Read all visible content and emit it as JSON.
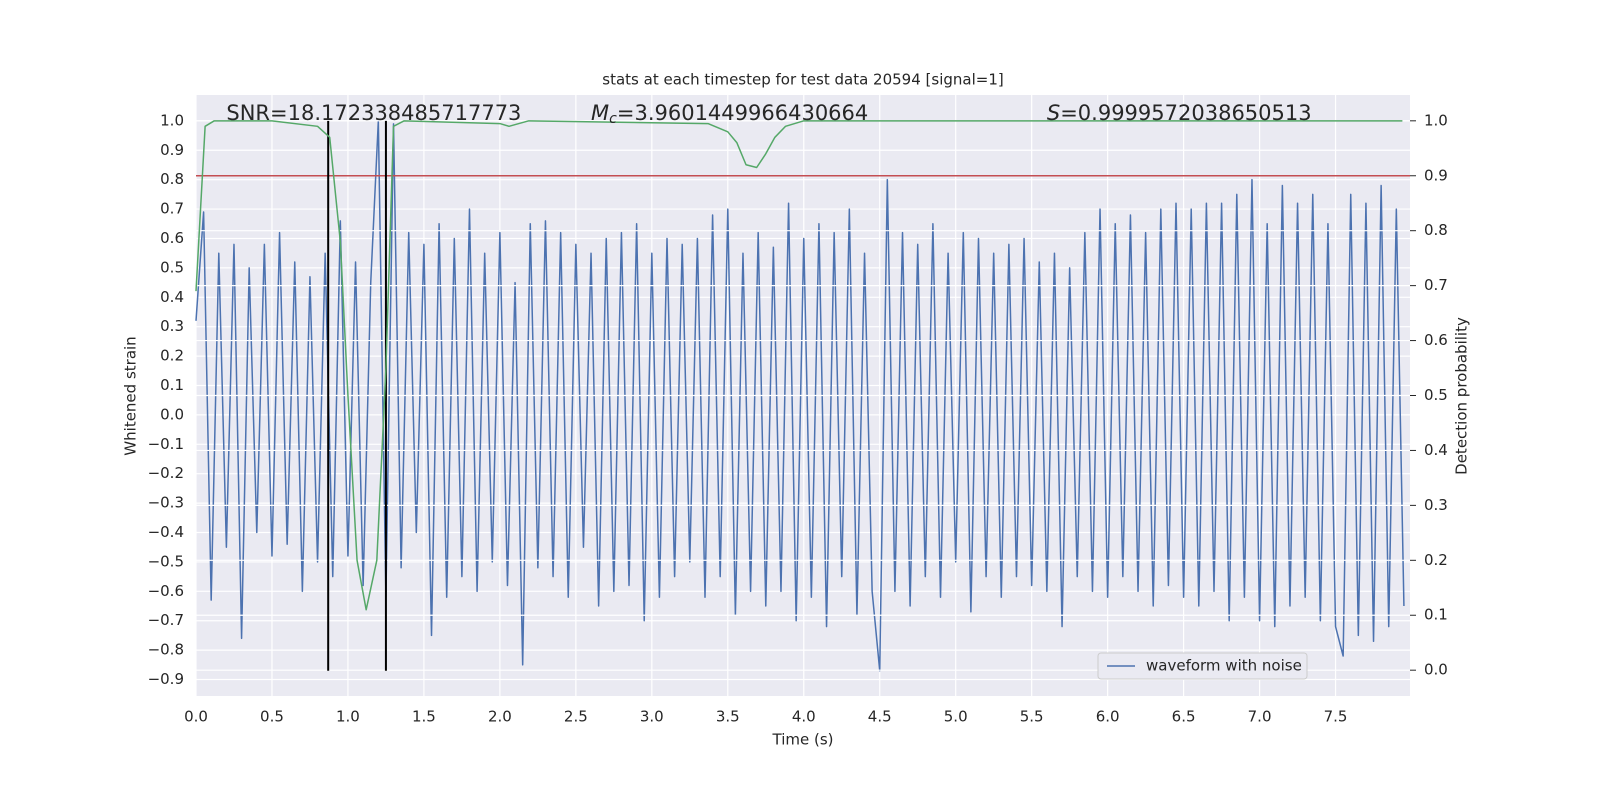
{
  "chart_data": {
    "type": "line",
    "title": "stats at each timestep for test data 20594 [signal=1]",
    "xlabel": "Time (s)",
    "ylabel": "Whitened strain",
    "y2label": "Detection probability",
    "annotations": [
      {
        "text": "SNR=18.172338485717773",
        "x": 0.2
      },
      {
        "symbol": "M",
        "subscript": "c",
        "text": "=3.9601449966430664",
        "x": 2.6
      },
      {
        "symbol": "S",
        "text": "=0.9999572038650513",
        "x": 5.6
      }
    ],
    "xlim": [
      0,
      7.99
    ],
    "ylim": [
      -0.956,
      1.088
    ],
    "y2lim": [
      -0.047,
      1.047
    ],
    "grid": true,
    "legend": "lower right",
    "xticks": [
      {
        "value": 0,
        "label": "0.0"
      },
      {
        "value": 0.5,
        "label": "0.5"
      },
      {
        "value": 1,
        "label": "1.0"
      },
      {
        "value": 1.5,
        "label": "1.5"
      },
      {
        "value": 2,
        "label": "2.0"
      },
      {
        "value": 2.5,
        "label": "2.5"
      },
      {
        "value": 3,
        "label": "3.0"
      },
      {
        "value": 3.5,
        "label": "3.5"
      },
      {
        "value": 4,
        "label": "4.0"
      },
      {
        "value": 4.5,
        "label": "4.5"
      },
      {
        "value": 5,
        "label": "5.0"
      },
      {
        "value": 5.5,
        "label": "5.5"
      },
      {
        "value": 6,
        "label": "6.0"
      },
      {
        "value": 6.5,
        "label": "6.5"
      },
      {
        "value": 7,
        "label": "7.0"
      },
      {
        "value": 7.5,
        "label": "7.5"
      }
    ],
    "yticks": [
      {
        "value": -0.9,
        "label": "−0.9"
      },
      {
        "value": -0.8,
        "label": "−0.8"
      },
      {
        "value": -0.7,
        "label": "−0.7"
      },
      {
        "value": -0.6,
        "label": "−0.6"
      },
      {
        "value": -0.5,
        "label": "−0.5"
      },
      {
        "value": -0.4,
        "label": "−0.4"
      },
      {
        "value": -0.3,
        "label": "−0.3"
      },
      {
        "value": -0.2,
        "label": "−0.2"
      },
      {
        "value": -0.1,
        "label": "−0.1"
      },
      {
        "value": 0,
        "label": "0.0"
      },
      {
        "value": 0.1,
        "label": "0.1"
      },
      {
        "value": 0.2,
        "label": "0.2"
      },
      {
        "value": 0.3,
        "label": "0.3"
      },
      {
        "value": 0.4,
        "label": "0.4"
      },
      {
        "value": 0.5,
        "label": "0.5"
      },
      {
        "value": 0.6,
        "label": "0.6"
      },
      {
        "value": 0.7,
        "label": "0.7"
      },
      {
        "value": 0.8,
        "label": "0.8"
      },
      {
        "value": 0.9,
        "label": "0.9"
      },
      {
        "value": 1,
        "label": "1.0"
      }
    ],
    "y2ticks": [
      {
        "value": 0,
        "label": "0.0"
      },
      {
        "value": 0.1,
        "label": "0.1"
      },
      {
        "value": 0.2,
        "label": "0.2"
      },
      {
        "value": 0.3,
        "label": "0.3"
      },
      {
        "value": 0.4,
        "label": "0.4"
      },
      {
        "value": 0.5,
        "label": "0.5"
      },
      {
        "value": 0.6,
        "label": "0.6"
      },
      {
        "value": 0.7,
        "label": "0.7"
      },
      {
        "value": 0.8,
        "label": "0.8"
      },
      {
        "value": 0.9,
        "label": "0.9"
      },
      {
        "value": 1,
        "label": "1.0"
      }
    ],
    "hline": {
      "y": 0.9,
      "axis": "y2",
      "color": "#c44e52"
    },
    "vlines": {
      "x": [
        0.87,
        1.25
      ],
      "ymin": -0.87,
      "ymax": 1.0,
      "color": "#000000"
    },
    "series": [
      {
        "name": "waveform with noise",
        "color": "#4c72b0",
        "x": [
          0,
          0.05,
          0.1,
          0.15,
          0.2,
          0.25,
          0.3,
          0.35,
          0.4,
          0.45,
          0.5,
          0.55,
          0.6,
          0.65,
          0.7,
          0.75,
          0.8,
          0.85,
          0.9,
          0.95,
          1,
          1.05,
          1.1,
          1.15,
          1.2,
          1.25,
          1.3,
          1.35,
          1.4,
          1.45,
          1.5,
          1.55,
          1.6,
          1.65,
          1.7,
          1.75,
          1.8,
          1.85,
          1.9,
          1.95,
          2,
          2.05,
          2.1,
          2.15,
          2.2,
          2.25,
          2.3,
          2.35,
          2.4,
          2.45,
          2.5,
          2.55,
          2.6,
          2.65,
          2.7,
          2.75,
          2.8,
          2.85,
          2.9,
          2.95,
          3,
          3.05,
          3.1,
          3.15,
          3.2,
          3.25,
          3.3,
          3.35,
          3.4,
          3.45,
          3.5,
          3.55,
          3.6,
          3.65,
          3.7,
          3.75,
          3.8,
          3.85,
          3.9,
          3.95,
          4,
          4.05,
          4.1,
          4.15,
          4.2,
          4.25,
          4.3,
          4.35,
          4.4,
          4.45,
          4.5,
          4.55,
          4.6,
          4.65,
          4.7,
          4.75,
          4.8,
          4.85,
          4.9,
          4.95,
          5,
          5.05,
          5.1,
          5.15,
          5.2,
          5.25,
          5.3,
          5.35,
          5.4,
          5.45,
          5.5,
          5.55,
          5.6,
          5.65,
          5.7,
          5.75,
          5.8,
          5.85,
          5.9,
          5.95,
          6,
          6.05,
          6.1,
          6.15,
          6.2,
          6.25,
          6.3,
          6.35,
          6.4,
          6.45,
          6.5,
          6.55,
          6.6,
          6.65,
          6.7,
          6.75,
          6.8,
          6.85,
          6.9,
          6.95,
          7,
          7.05,
          7.1,
          7.15,
          7.2,
          7.25,
          7.3,
          7.35,
          7.4,
          7.45,
          7.5,
          7.55,
          7.6,
          7.65,
          7.7,
          7.75,
          7.8,
          7.85,
          7.9,
          7.95
        ],
        "values": [
          0.32,
          0.69,
          -0.63,
          0.55,
          -0.45,
          0.58,
          -0.76,
          0.5,
          -0.4,
          0.58,
          -0.48,
          0.62,
          -0.44,
          0.52,
          -0.6,
          0.47,
          -0.5,
          0.55,
          -0.55,
          0.66,
          -0.48,
          0.52,
          -0.58,
          0.45,
          1.0,
          -0.62,
          0.99,
          -0.52,
          0.62,
          -0.4,
          0.58,
          -0.75,
          0.65,
          -0.62,
          0.6,
          -0.55,
          0.7,
          -0.6,
          0.55,
          -0.5,
          0.62,
          -0.58,
          0.45,
          -0.85,
          0.65,
          -0.52,
          0.66,
          -0.55,
          0.62,
          -0.62,
          0.58,
          -0.45,
          0.55,
          -0.65,
          0.6,
          -0.6,
          0.62,
          -0.58,
          0.65,
          -0.7,
          0.55,
          -0.62,
          0.6,
          -0.55,
          0.58,
          -0.5,
          0.6,
          -0.62,
          0.68,
          -0.55,
          0.7,
          -0.68,
          0.55,
          -0.6,
          0.62,
          -0.65,
          0.57,
          -0.6,
          0.72,
          -0.7,
          0.6,
          -0.62,
          0.65,
          -0.72,
          0.62,
          -0.55,
          0.7,
          -0.68,
          0.55,
          -0.6,
          -0.87,
          0.8,
          -0.6,
          0.62,
          -0.65,
          0.58,
          -0.55,
          0.65,
          -0.62,
          0.55,
          -0.5,
          0.62,
          -0.67,
          0.6,
          -0.55,
          0.55,
          -0.62,
          0.58,
          -0.55,
          0.6,
          -0.58,
          0.52,
          -0.6,
          0.55,
          -0.72,
          0.5,
          -0.55,
          0.62,
          -0.6,
          0.7,
          -0.62,
          0.65,
          -0.55,
          0.68,
          -0.6,
          0.62,
          -0.65,
          0.7,
          -0.58,
          0.72,
          -0.62,
          0.7,
          -0.65,
          0.72,
          -0.6,
          0.72,
          -0.7,
          0.75,
          -0.62,
          0.8,
          -0.7,
          0.65,
          -0.72,
          0.78,
          -0.65,
          0.72,
          -0.62,
          0.75,
          -0.7,
          0.65,
          -0.72,
          -0.82,
          0.75,
          -0.75,
          0.72,
          -0.77,
          0.78,
          -0.72,
          0.7,
          -0.65
        ]
      },
      {
        "color": "#55a868",
        "axis": "y2",
        "x": [
          0,
          0.06,
          0.12,
          0.5,
          0.8,
          0.88,
          0.95,
          1.0,
          1.06,
          1.12,
          1.19,
          1.25,
          1.3,
          1.37,
          2.0,
          2.06,
          2.19,
          3.37,
          3.5,
          3.56,
          3.62,
          3.69,
          3.75,
          3.81,
          3.88,
          4.0,
          7.94
        ],
        "values": [
          0.69,
          0.99,
          1.0,
          1.0,
          0.99,
          0.97,
          0.78,
          0.5,
          0.2,
          0.11,
          0.2,
          0.55,
          0.99,
          1.0,
          0.995,
          0.99,
          1.0,
          0.995,
          0.98,
          0.96,
          0.92,
          0.915,
          0.94,
          0.97,
          0.99,
          1.0,
          1.0
        ]
      }
    ]
  }
}
